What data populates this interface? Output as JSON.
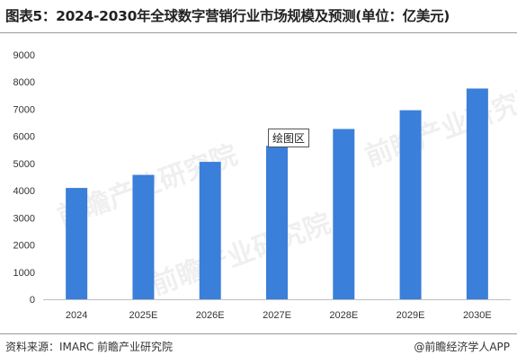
{
  "header": {
    "title": "图表5：2024-2030年全球数字营销行业市场规模及预测(单位：亿美元)"
  },
  "footer": {
    "source": "资料来源：IMARC 前瞻产业研究院",
    "brand": "@前瞻经济学人APP"
  },
  "overlay": {
    "tooltip": "绘图区",
    "watermark": "前瞻产业研究院"
  },
  "colors": {
    "bar": "#3a7fd9",
    "axis_text": "#333333",
    "axis_line": "#bfbfbf"
  },
  "chart_data": {
    "type": "bar",
    "categories": [
      "2024",
      "2025E",
      "2026E",
      "2027E",
      "2028E",
      "2029E",
      "2030E"
    ],
    "values": [
      4100,
      4580,
      5060,
      5650,
      6270,
      6960,
      7760
    ],
    "ylim": [
      0,
      9000
    ],
    "yticks": [
      0,
      1000,
      2000,
      3000,
      4000,
      5000,
      6000,
      7000,
      8000,
      9000
    ],
    "grid": false,
    "legend": "none"
  }
}
